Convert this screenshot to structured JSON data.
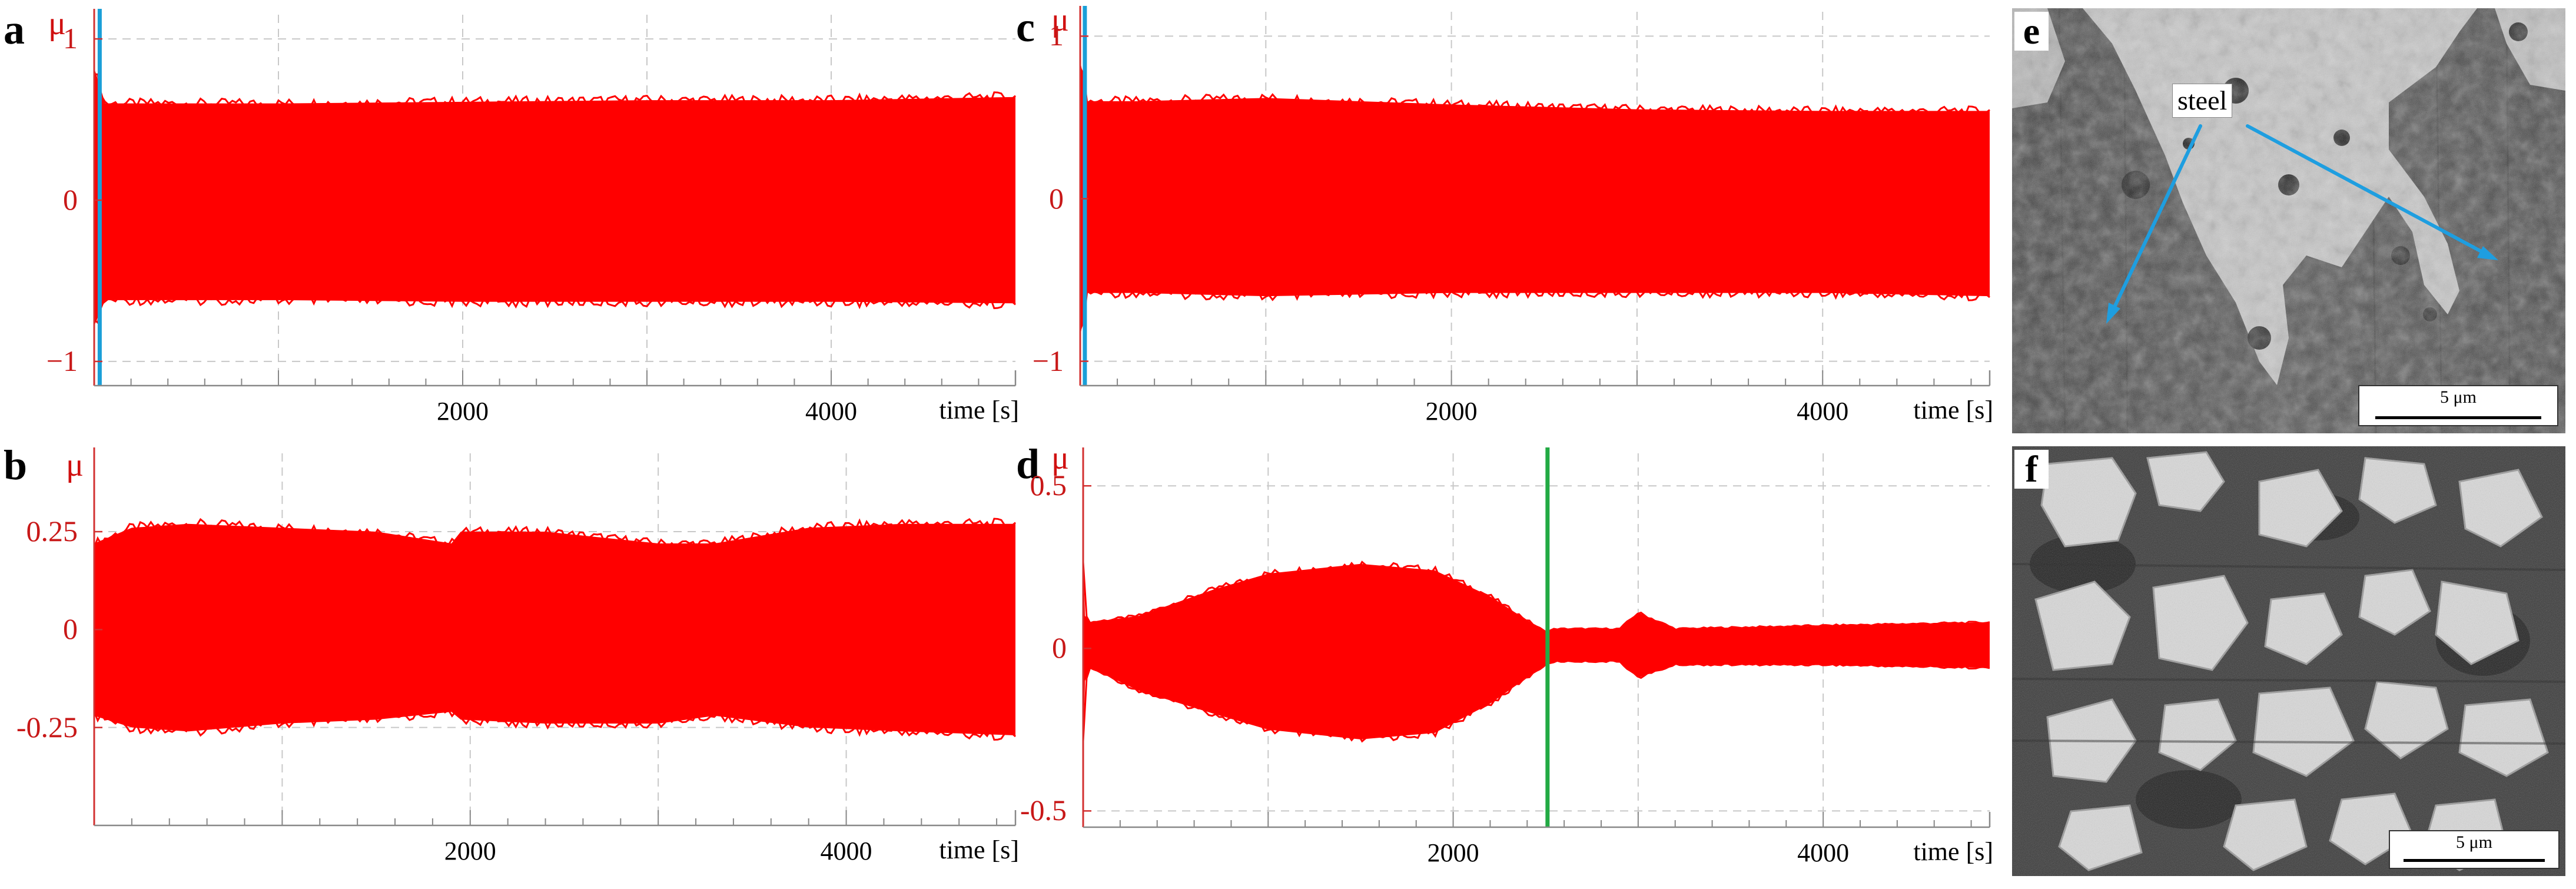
{
  "chart_data": [
    {
      "id": "a",
      "type": "area",
      "panel_label": "a",
      "ylabel": "μ",
      "xlabel": "time [s]",
      "xlim": [
        0,
        5000
      ],
      "ylim": [
        -1.15,
        1.15
      ],
      "yticks": [
        {
          "v": 1,
          "label": "1"
        },
        {
          "v": 0,
          "label": "0"
        },
        {
          "v": -1,
          "label": "−1"
        }
      ],
      "xticks": [
        {
          "v": 2000,
          "label": "2000"
        },
        {
          "v": 4000,
          "label": "4000"
        }
      ],
      "grid": true,
      "series": [
        {
          "color": "#ff0000",
          "x": [
            0,
            60,
            500,
            1000,
            2000,
            3000,
            4000,
            5000
          ],
          "upper": [
            0.82,
            0.6,
            0.6,
            0.6,
            0.61,
            0.62,
            0.62,
            0.64
          ],
          "lower": [
            -0.78,
            -0.62,
            -0.62,
            -0.62,
            -0.63,
            -0.63,
            -0.63,
            -0.64
          ]
        }
      ],
      "vlines": [
        {
          "x": 30,
          "color": "#1a9fd8"
        }
      ]
    },
    {
      "id": "b",
      "type": "area",
      "panel_label": "b",
      "ylabel": "μ",
      "xlabel": "time [s]",
      "xlim": [
        0,
        4900
      ],
      "ylim": [
        -0.5,
        0.45
      ],
      "yticks": [
        {
          "v": 0.25,
          "label": "0.25"
        },
        {
          "v": 0,
          "label": "0"
        },
        {
          "v": -0.25,
          "label": "-0.25"
        }
      ],
      "xticks": [
        {
          "v": 2000,
          "label": "2000"
        },
        {
          "v": 4000,
          "label": "4000"
        }
      ],
      "grid": true,
      "series": [
        {
          "color": "#ff0000",
          "x": [
            0,
            200,
            500,
            1000,
            1500,
            1900,
            1950,
            2400,
            3000,
            3300,
            3800,
            4300,
            4900
          ],
          "upper": [
            0.22,
            0.26,
            0.27,
            0.26,
            0.25,
            0.22,
            0.25,
            0.25,
            0.22,
            0.22,
            0.26,
            0.27,
            0.27
          ],
          "lower": [
            -0.22,
            -0.25,
            -0.26,
            -0.24,
            -0.23,
            -0.21,
            -0.23,
            -0.24,
            -0.24,
            -0.22,
            -0.25,
            -0.26,
            -0.27
          ]
        }
      ],
      "vlines": []
    },
    {
      "id": "c",
      "type": "area",
      "panel_label": "c",
      "ylabel": "μ",
      "xlabel": "time [s]",
      "xlim": [
        0,
        4900
      ],
      "ylim": [
        -1.15,
        1.15
      ],
      "yticks": [
        {
          "v": 1,
          "label": "1"
        },
        {
          "v": 0,
          "label": "0"
        },
        {
          "v": -1,
          "label": "−1"
        }
      ],
      "xticks": [
        {
          "v": 2000,
          "label": "2000"
        },
        {
          "v": 4000,
          "label": "4000"
        }
      ],
      "grid": true,
      "series": [
        {
          "color": "#ff0000",
          "x": [
            0,
            40,
            300,
            1000,
            2000,
            3000,
            4000,
            4900
          ],
          "upper": [
            0.85,
            0.6,
            0.6,
            0.62,
            0.58,
            0.55,
            0.54,
            0.54
          ],
          "lower": [
            -0.85,
            -0.58,
            -0.58,
            -0.6,
            -0.58,
            -0.58,
            -0.58,
            -0.6
          ]
        }
      ],
      "vlines": [
        {
          "x": 25,
          "color": "#1a9fd8"
        }
      ]
    },
    {
      "id": "d",
      "type": "area",
      "panel_label": "d",
      "ylabel": "μ",
      "xlabel": "time [s]",
      "xlim": [
        0,
        4900
      ],
      "ylim": [
        -0.55,
        0.6
      ],
      "yticks": [
        {
          "v": 0.5,
          "label": "0.5"
        },
        {
          "v": 0,
          "label": "0"
        },
        {
          "v": -0.5,
          "label": "-0.5"
        }
      ],
      "xticks": [
        {
          "v": 2000,
          "label": "2000"
        },
        {
          "v": 4000,
          "label": "4000"
        }
      ],
      "grid": true,
      "series": [
        {
          "color": "#ff0000",
          "x": [
            0,
            10,
            40,
            300,
            700,
            1000,
            1500,
            1900,
            2200,
            2500,
            2550,
            2900,
            3000,
            3200,
            4000,
            4900
          ],
          "upper": [
            0.28,
            0.1,
            0.08,
            0.1,
            0.18,
            0.23,
            0.26,
            0.24,
            0.16,
            0.05,
            0.06,
            0.06,
            0.11,
            0.06,
            0.07,
            0.08
          ],
          "lower": [
            -0.3,
            -0.1,
            -0.06,
            -0.13,
            -0.2,
            -0.25,
            -0.28,
            -0.26,
            -0.17,
            -0.05,
            -0.04,
            -0.04,
            -0.09,
            -0.05,
            -0.05,
            -0.06
          ]
        }
      ],
      "vlines": [
        {
          "x": 2510,
          "color": "#22aa44"
        }
      ]
    }
  ],
  "images": {
    "e": {
      "panel_label": "e",
      "annotation": "steel",
      "scale_bar": "5 μm"
    },
    "f": {
      "panel_label": "f",
      "scale_bar": "5 μm"
    }
  }
}
